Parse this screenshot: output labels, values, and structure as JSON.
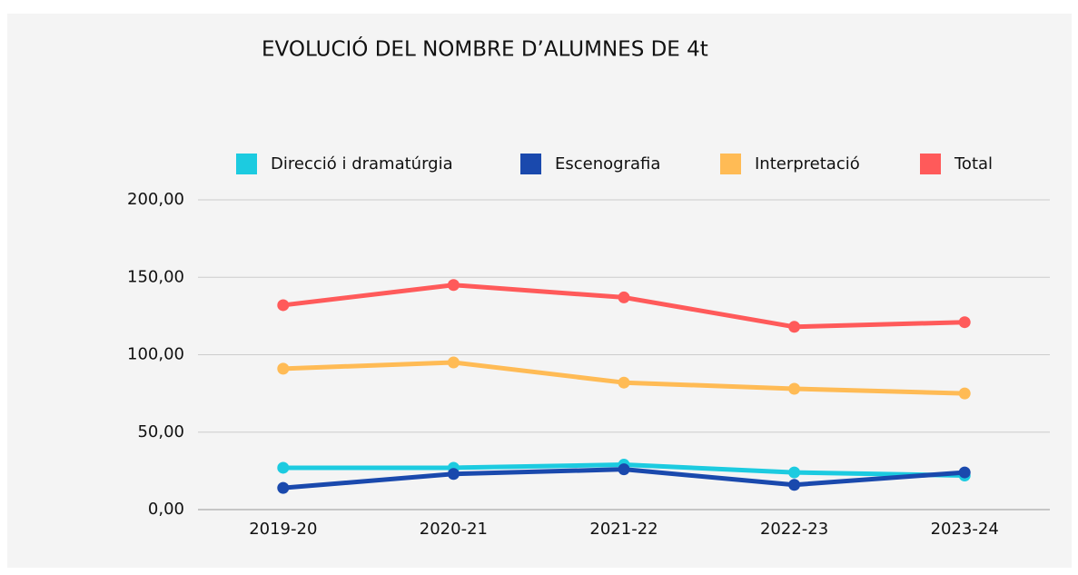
{
  "chart_data": {
    "type": "line",
    "title": "EVOLUCIÓ DEL NOMBRE D’ALUMNES DE 4t",
    "categories": [
      "2019-20",
      "2020-21",
      "2021-22",
      "2022-23",
      "2023-24"
    ],
    "series": [
      {
        "name": "Direcció i dramatúrgia",
        "color": "#1ccbe0",
        "values": [
          27,
          27,
          29,
          24,
          22
        ]
      },
      {
        "name": "Escenografia",
        "color": "#1a49ad",
        "values": [
          14,
          23,
          26,
          16,
          24
        ]
      },
      {
        "name": "Interpretació",
        "color": "#ffbb55",
        "values": [
          91,
          95,
          82,
          78,
          75
        ]
      },
      {
        "name": "Total",
        "color": "#ff5a5a",
        "values": [
          132,
          145,
          137,
          118,
          121
        ]
      }
    ],
    "ylim": [
      0,
      200
    ],
    "yticks": [
      {
        "value": 0,
        "label": "0,00"
      },
      {
        "value": 50,
        "label": "50,00"
      },
      {
        "value": 100,
        "label": "100,00"
      },
      {
        "value": 150,
        "label": "150,00"
      },
      {
        "value": 200,
        "label": "200,00"
      }
    ],
    "grid": true,
    "legend": "top"
  }
}
